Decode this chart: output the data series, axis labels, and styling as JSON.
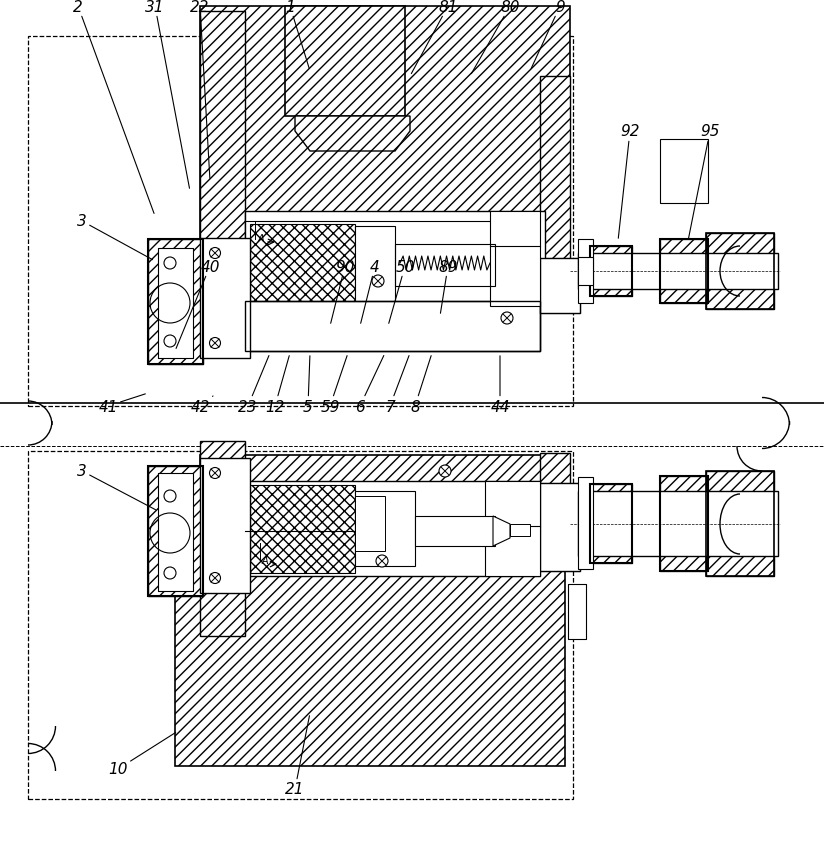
{
  "bg_color": "#ffffff",
  "figsize": [
    8.24,
    8.62
  ],
  "dpi": 100,
  "top_labels": [
    [
      "2",
      78,
      855,
      155,
      645
    ],
    [
      "31",
      155,
      855,
      190,
      670
    ],
    [
      "22",
      200,
      855,
      210,
      680
    ],
    [
      "1",
      290,
      855,
      310,
      790
    ],
    [
      "81",
      448,
      855,
      410,
      785
    ],
    [
      "80",
      510,
      855,
      470,
      785
    ],
    [
      "9",
      560,
      855,
      530,
      790
    ]
  ],
  "tr_labels": [
    [
      "92",
      630,
      730,
      618,
      620
    ],
    [
      "95",
      710,
      730,
      688,
      620
    ]
  ],
  "mid_labels": [
    [
      "3",
      82,
      640,
      155,
      600
    ],
    [
      "41",
      108,
      455,
      148,
      468
    ],
    [
      "42",
      200,
      455,
      213,
      465
    ],
    [
      "23",
      248,
      455,
      270,
      508
    ],
    [
      "12",
      275,
      455,
      290,
      508
    ],
    [
      "5",
      308,
      455,
      310,
      508
    ],
    [
      "59",
      330,
      455,
      348,
      508
    ],
    [
      "6",
      360,
      455,
      385,
      508
    ],
    [
      "7",
      390,
      455,
      410,
      508
    ],
    [
      "8",
      415,
      455,
      432,
      508
    ],
    [
      "44",
      500,
      455,
      500,
      508
    ]
  ],
  "bot_upper_labels": [
    [
      "40",
      210,
      595,
      175,
      510
    ],
    [
      "90",
      345,
      595,
      330,
      535
    ],
    [
      "4",
      375,
      595,
      360,
      535
    ],
    [
      "50",
      405,
      595,
      388,
      535
    ],
    [
      "89",
      448,
      595,
      440,
      545
    ]
  ],
  "bot_labels": [
    [
      "3",
      82,
      390,
      158,
      350
    ],
    [
      "10",
      118,
      92,
      178,
      130
    ],
    [
      "21",
      295,
      72,
      310,
      148
    ]
  ]
}
